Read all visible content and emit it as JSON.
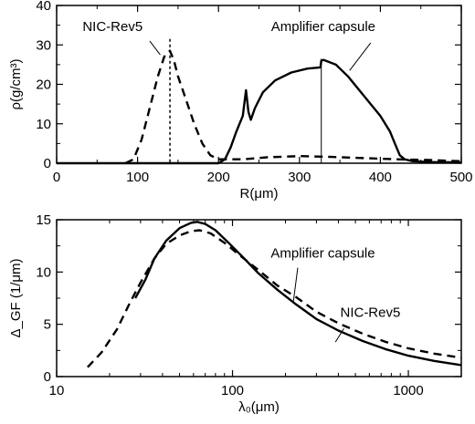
{
  "chart_data": [
    {
      "type": "line",
      "xlabel": "R(μm)",
      "ylabel": "ρ(g/cm³)",
      "xlim": [
        0,
        500
      ],
      "ylim": [
        0,
        40
      ],
      "xticks": [
        "0",
        "100",
        "200",
        "300",
        "400",
        "500"
      ],
      "yticks": [
        "0",
        "10",
        "20",
        "30",
        "40"
      ],
      "grid": false,
      "series": [
        {
          "name": "NIC-Rev5",
          "style": "dashed",
          "x": [
            85,
            95,
            105,
            115,
            125,
            133,
            140,
            145,
            150,
            160,
            170,
            180,
            190,
            200,
            210,
            230,
            260,
            300,
            340,
            380,
            420,
            460,
            500
          ],
          "y": [
            0,
            1,
            6,
            14,
            22,
            27,
            28.5,
            26,
            22,
            16,
            10,
            5,
            2,
            1,
            1,
            1,
            1.5,
            1.8,
            1.6,
            1.3,
            1,
            0.8,
            0.5
          ]
        },
        {
          "name": "Amplifier capsule",
          "style": "solid",
          "x": [
            0,
            200,
            208,
            215,
            222,
            230,
            234,
            237,
            240,
            245,
            255,
            270,
            290,
            310,
            326,
            327,
            330,
            345,
            360,
            380,
            400,
            412,
            418,
            424,
            430,
            440,
            460,
            500
          ],
          "y": [
            0,
            0,
            1,
            4,
            8,
            12,
            18.5,
            13,
            11,
            14,
            18,
            21,
            23,
            24,
            24.3,
            26,
            26.2,
            25,
            22,
            17,
            12,
            8,
            5,
            2,
            1,
            0.5,
            0.3,
            0.2
          ]
        }
      ],
      "annotations": [
        "NIC-Rev5",
        "Amplifier capsule"
      ]
    },
    {
      "type": "line",
      "xlabel": "λ₀(μm)",
      "ylabel": "Δ_GF (1/μm)",
      "xscale": "log",
      "xlim": [
        10,
        2000
      ],
      "ylim": [
        0,
        15
      ],
      "xticks": [
        "10",
        "100",
        "1000"
      ],
      "yticks": [
        "0",
        "5",
        "10",
        "15"
      ],
      "grid": false,
      "series": [
        {
          "name": "NIC-Rev5",
          "style": "dashed",
          "x": [
            15,
            18,
            22,
            26,
            30,
            36,
            42,
            50,
            58,
            65,
            75,
            90,
            110,
            140,
            180,
            230,
            300,
            400,
            550,
            750,
            1000,
            1400,
            2000
          ],
          "y": [
            0.9,
            2.3,
            4.5,
            7,
            9,
            11.3,
            12.7,
            13.5,
            13.9,
            14,
            13.7,
            12.8,
            11.6,
            10.2,
            8.7,
            7.6,
            6.2,
            5.1,
            4.1,
            3.3,
            2.7,
            2.2,
            1.8
          ]
        },
        {
          "name": "Amplifier capsule",
          "style": "solid",
          "x": [
            28,
            32,
            36,
            42,
            50,
            58,
            63,
            70,
            80,
            95,
            115,
            140,
            180,
            230,
            300,
            400,
            550,
            750,
            1000,
            1400,
            2000
          ],
          "y": [
            7.5,
            9.3,
            11.3,
            13,
            14.2,
            14.7,
            14.8,
            14.6,
            14,
            12.8,
            11.4,
            9.9,
            8.3,
            6.9,
            5.5,
            4.4,
            3.4,
            2.6,
            2,
            1.5,
            1.1
          ]
        }
      ],
      "annotations": [
        "Amplifier capsule",
        "NIC-Rev5"
      ]
    }
  ]
}
